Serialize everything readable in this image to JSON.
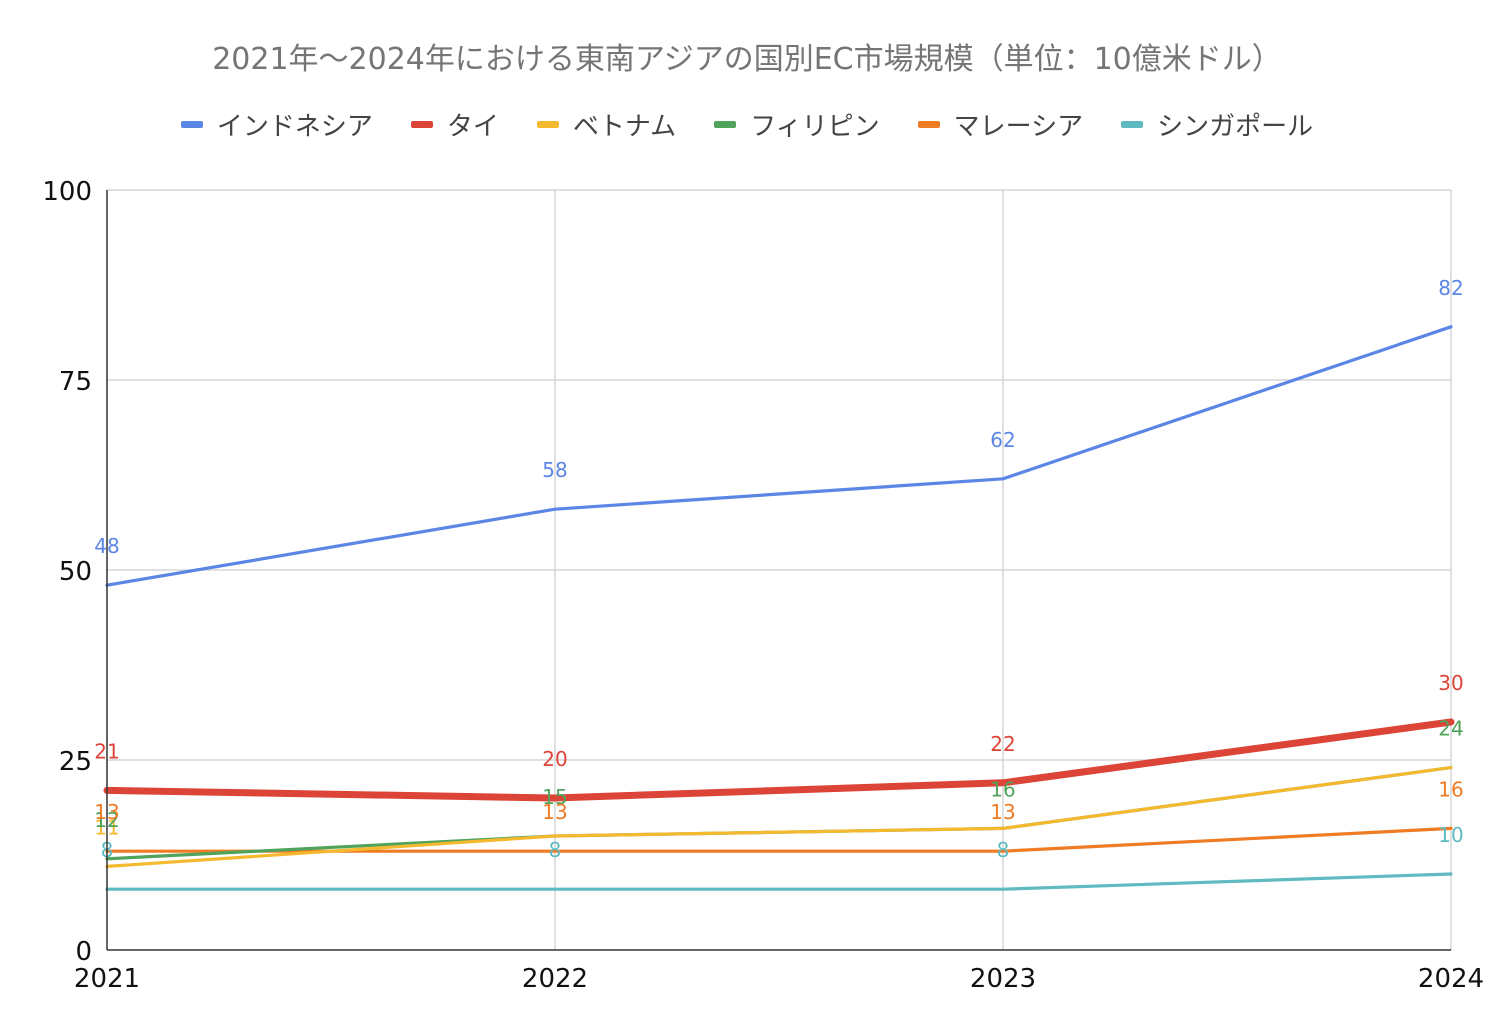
{
  "chart_data": {
    "type": "line",
    "title": "2021年〜2024年における東南アジアの国別EC市場規模（単位：10億米ドル）",
    "xlabel": "",
    "ylabel": "",
    "categories": [
      "2021",
      "2022",
      "2023",
      "2024"
    ],
    "ylim": [
      0,
      100
    ],
    "yticks": [
      "0",
      "25",
      "50",
      "75",
      "100"
    ],
    "grid": true,
    "legend_position": "top",
    "series": [
      {
        "name": "インドネシア",
        "color": "#5b86e5",
        "values": [
          48,
          58,
          62,
          82
        ],
        "labels": [
          "48",
          "58",
          "62",
          "82"
        ],
        "emphasis": false
      },
      {
        "name": "タイ",
        "color": "#db4437",
        "values": [
          21,
          20,
          22,
          30
        ],
        "labels": [
          "21",
          "20",
          "22",
          "30"
        ],
        "emphasis": true
      },
      {
        "name": "ベトナム",
        "color": "#f4b92f",
        "values": [
          11,
          15,
          16,
          24
        ],
        "labels": [
          "11",
          "",
          "",
          ""
        ],
        "emphasis": false
      },
      {
        "name": "フィリピン",
        "color": "#4fa35a",
        "values": [
          12,
          15,
          16,
          24
        ],
        "labels": [
          "12",
          "15",
          "16",
          "24"
        ],
        "emphasis": false
      },
      {
        "name": "マレーシア",
        "color": "#ef7b24",
        "values": [
          13,
          13,
          13,
          16
        ],
        "labels": [
          "13",
          "13",
          "13",
          "16"
        ],
        "emphasis": false
      },
      {
        "name": "シンガポール",
        "color": "#5fbac1",
        "values": [
          8,
          8,
          8,
          10
        ],
        "labels": [
          "8",
          "8",
          "8",
          "10"
        ],
        "emphasis": false
      }
    ]
  }
}
